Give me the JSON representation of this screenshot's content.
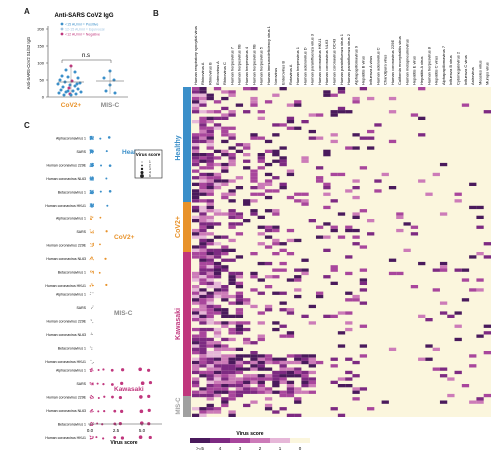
{
  "panels": {
    "A": "A",
    "B": "B",
    "C": "C"
  },
  "panel_a": {
    "title": "Anti-SARS CoV2 IgG",
    "ylabel": "Anti-SARS-CoV2 S1/S2 IgG",
    "significance": "n.s",
    "groups": [
      "CoV2+",
      "MIS-C"
    ],
    "group_colors": [
      "#e8922a",
      "#8a8a8a"
    ],
    "yticks": [
      "0",
      "50",
      "100",
      "150",
      "200"
    ],
    "legend": [
      {
        "label": "<15 AU/ml = Positive",
        "color": "#3b8fc9"
      },
      {
        "label": "12-15 AU/ml = Equivocal",
        "color": "#9fc3e0"
      },
      {
        "label": "<12 AU/ml = Negative",
        "color": "#c0367d"
      }
    ]
  },
  "panel_b": {
    "virus_labels": [
      "Human respiratory syncytial virus",
      "Rhinovirus A",
      "Rhinovirus B",
      "Enterovirus A",
      "Rhinovirus C",
      "Human herpesvirus 7",
      "Human herpesvirus 6B",
      "Human herpesvirus 4",
      "Human herpesvirus 6B",
      "Human herpesvirus 5",
      "Human immunodeficiency virus 1",
      "Norovirus",
      "Enterovirus B",
      "Rotavirus A",
      "Human herpesvirus 1",
      "Human adenovirus D",
      "Human parainfluenza virus 3",
      "Human coronavirus HKU1",
      "Human coronavirus NL63",
      "Human coronavirus OC43",
      "Human parainfluenza virus 1",
      "Human parainfluenza virus 2",
      "Alphapapillomavirus 9",
      "Hepatitis B virus",
      "Influenza A virus",
      "Human adenovirus C",
      "Chandipura virus",
      "Human coronavirus 229E",
      "California encephalitis virus",
      "Human metapneumovirus",
      "Hepatitis E virus",
      "Hepatitis A virus",
      "Human herpesvirus 8",
      "Hepatitis C virus",
      "Alphapapillomavirus 7",
      "Influenza B virus",
      "Cytomegalovirus 2",
      "Influenza C virus",
      "Astrovirus",
      "Measles virus",
      "Mumps virus"
    ],
    "group_labels": [
      "Healthy",
      "CoV2+",
      "Kawasaki",
      "MIS-C"
    ],
    "group_colors": [
      "#3b8fc9",
      "#e8922a",
      "#c0367d",
      "#a0a0a0"
    ],
    "color_legend": {
      "title": "Virus score",
      "ticks": [
        ">=5",
        "4",
        "3",
        "2",
        "1",
        "0"
      ],
      "colors": [
        "#4a1a5c",
        "#7d2a82",
        "#a8469c",
        "#cc7bb8",
        "#e6b7d8",
        "#fbf6dd"
      ]
    }
  },
  "panel_c": {
    "groups": [
      {
        "name": "Healthy",
        "color": "#3b8fc9"
      },
      {
        "name": "CoV2+",
        "color": "#e8922a"
      },
      {
        "name": "MIS-C",
        "color": "#8a8a8a"
      },
      {
        "name": "Kawasaki",
        "color": "#c0367d"
      }
    ],
    "virus_rows": [
      "Alphacoronavirus 1",
      "SARS",
      "Human coronavirus 229E",
      "Human coronavirus NL63",
      "Betacoronavirus 1",
      "Human coronavirus HKU1"
    ],
    "xlabel": "Virus score",
    "xticks": [
      "0.0",
      "2.5",
      "5.0"
    ],
    "size_legend_title": "Virus score",
    "size_legend_values": [
      "1",
      "2",
      "3",
      "4",
      "5"
    ]
  }
}
